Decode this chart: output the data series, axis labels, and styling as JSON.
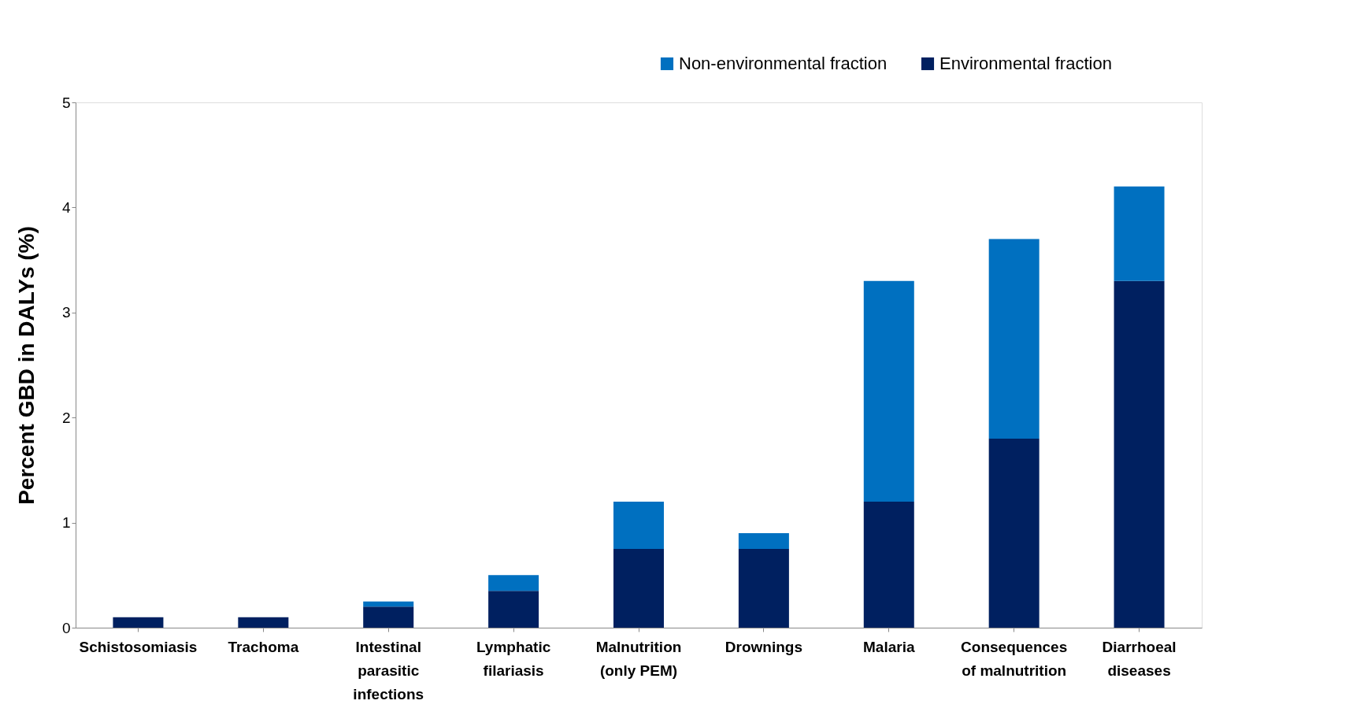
{
  "chart_data": {
    "type": "bar",
    "stacked": true,
    "ylabel": "Percent GBD in DALYs (%)",
    "categories": [
      "Schistosomiasis",
      "Trachoma",
      "Intestinal\nparasitic\ninfections",
      "Lymphatic\nfilariasis",
      "Malnutrition\n(only PEM)",
      "Drownings",
      "Malaria",
      "Consequences\nof malnutrition",
      "Diarrhoeal\ndiseases"
    ],
    "series": [
      {
        "name": "Environmental fraction",
        "color": "#002060",
        "values": [
          0.1,
          0.1,
          0.2,
          0.35,
          0.75,
          0.75,
          1.2,
          1.8,
          3.3
        ]
      },
      {
        "name": "Non-environmental fraction",
        "color": "#0070c0",
        "values": [
          0,
          0,
          0.05,
          0.15,
          0.45,
          0.15,
          2.1,
          1.9,
          0.9
        ]
      }
    ],
    "ylim": [
      0,
      5
    ],
    "yticks": [
      0,
      1,
      2,
      3,
      4,
      5
    ],
    "grid": false,
    "legend": "top right"
  }
}
